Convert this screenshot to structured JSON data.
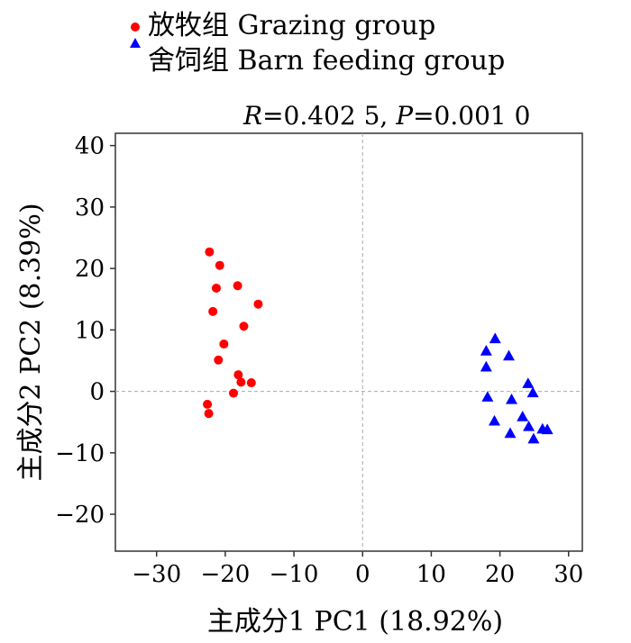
{
  "chart_data": {
    "type": "scatter",
    "annotation": "R=0.402 5, P=0.001 0",
    "annotation_parts": {
      "r_symbol": "R",
      "r_value": "=0.402 5, ",
      "p_symbol": "P",
      "p_value": "=0.001 0"
    },
    "xlabel": "主成分1 PC1 (18.92%)",
    "ylabel": "主成分2 PC2 (8.39%)",
    "xlim": [
      -36,
      32
    ],
    "ylim": [
      -26,
      42
    ],
    "xticks": [
      -30,
      -20,
      -10,
      0,
      10,
      20,
      30
    ],
    "yticks": [
      -20,
      -10,
      0,
      10,
      20,
      30,
      40
    ],
    "xtick_labels": [
      "−30",
      "−20",
      "−10",
      "0",
      "10",
      "20",
      "30"
    ],
    "ytick_labels": [
      "−20",
      "−10",
      "0",
      "10",
      "20",
      "30",
      "40"
    ],
    "reference_lines": {
      "x": 0,
      "y": 0
    },
    "grid": false,
    "legend_position": "top-left",
    "series": [
      {
        "name": "放牧组 Grazing group",
        "marker": "circle",
        "color": "#ff0000",
        "points": [
          [
            -22.3,
            22.7
          ],
          [
            -20.8,
            20.5
          ],
          [
            -21.3,
            16.8
          ],
          [
            -21.8,
            13.0
          ],
          [
            -18.2,
            17.2
          ],
          [
            -15.2,
            14.2
          ],
          [
            -17.3,
            10.6
          ],
          [
            -20.2,
            7.7
          ],
          [
            -21.0,
            5.1
          ],
          [
            -18.1,
            2.7
          ],
          [
            -17.7,
            1.5
          ],
          [
            -16.2,
            1.4
          ],
          [
            -18.8,
            -0.3
          ],
          [
            -22.6,
            -2.1
          ],
          [
            -22.4,
            -3.6
          ]
        ]
      },
      {
        "name": "舍饲组 Barn feeding group",
        "marker": "triangle",
        "color": "#0000ff",
        "points": [
          [
            19.3,
            8.6
          ],
          [
            18.0,
            6.6
          ],
          [
            21.3,
            5.8
          ],
          [
            18.0,
            4.0
          ],
          [
            24.1,
            1.3
          ],
          [
            24.8,
            -0.2
          ],
          [
            18.2,
            -0.9
          ],
          [
            21.7,
            -1.3
          ],
          [
            23.3,
            -4.1
          ],
          [
            19.2,
            -4.8
          ],
          [
            24.2,
            -5.7
          ],
          [
            26.2,
            -6.1
          ],
          [
            26.9,
            -6.2
          ],
          [
            21.5,
            -6.8
          ],
          [
            24.9,
            -7.7
          ]
        ]
      }
    ]
  }
}
